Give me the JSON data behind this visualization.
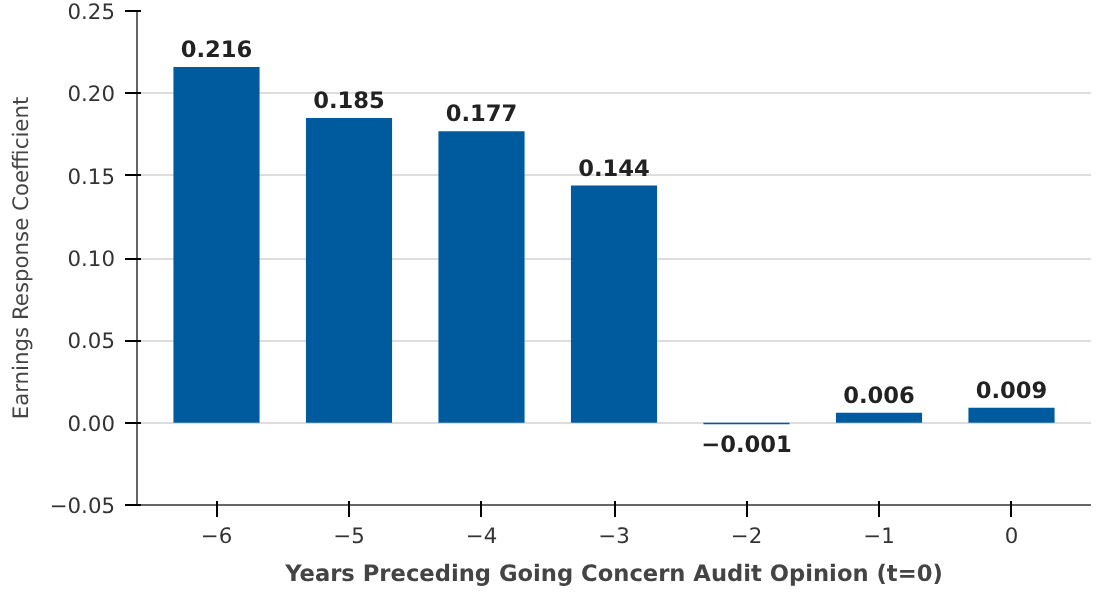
{
  "chart_data": {
    "type": "bar",
    "xlabel": "Years Preceding Going Concern Audit Opinion (t=0)",
    "ylabel": "Earnings Response Coefficient",
    "categories": [
      "−6",
      "−5",
      "−4",
      "−3",
      "−2",
      "−1",
      "0"
    ],
    "values": [
      0.216,
      0.185,
      0.177,
      0.144,
      -0.001,
      0.006,
      0.009
    ],
    "value_labels": [
      "0.216",
      "0.185",
      "0.177",
      "0.144",
      "−0.001",
      "0.006",
      "0.009"
    ],
    "color": "#005a9e",
    "ylim": [
      -0.05,
      0.25
    ],
    "yticks": [
      {
        "value": -0.05,
        "label": "−0.05"
      },
      {
        "value": 0,
        "label": "0.00"
      },
      {
        "value": 0.05,
        "label": "0.05"
      },
      {
        "value": 0.1,
        "label": "0.10"
      },
      {
        "value": 0.15,
        "label": "0.15"
      },
      {
        "value": 0.2,
        "label": "0.20"
      },
      {
        "value": 0.25,
        "label": "0.25"
      }
    ],
    "grid": "y"
  }
}
